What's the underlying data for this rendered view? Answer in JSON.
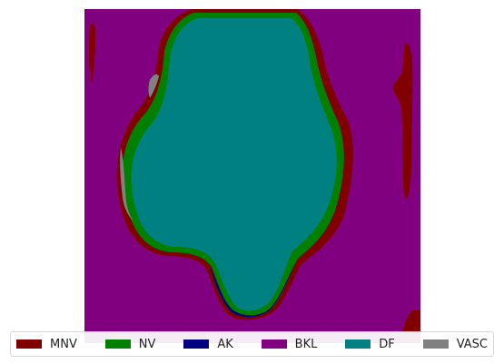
{
  "legend": [
    {
      "label": "MNV",
      "color": "#800000"
    },
    {
      "label": "NV",
      "color": "#008000"
    },
    {
      "label": "AK",
      "color": "#000080"
    },
    {
      "label": "BKL",
      "color": "#800080"
    },
    {
      "label": "DF",
      "color": "#008080"
    },
    {
      "label": "VASC",
      "color": "#808080"
    }
  ],
  "colors": {
    "background_class": "#800080",
    "lesion_core": "#008080",
    "lesion_rim": "#008000",
    "outer_rim": "#800000",
    "lower_edge": "#000080",
    "speckle": "#808080"
  }
}
